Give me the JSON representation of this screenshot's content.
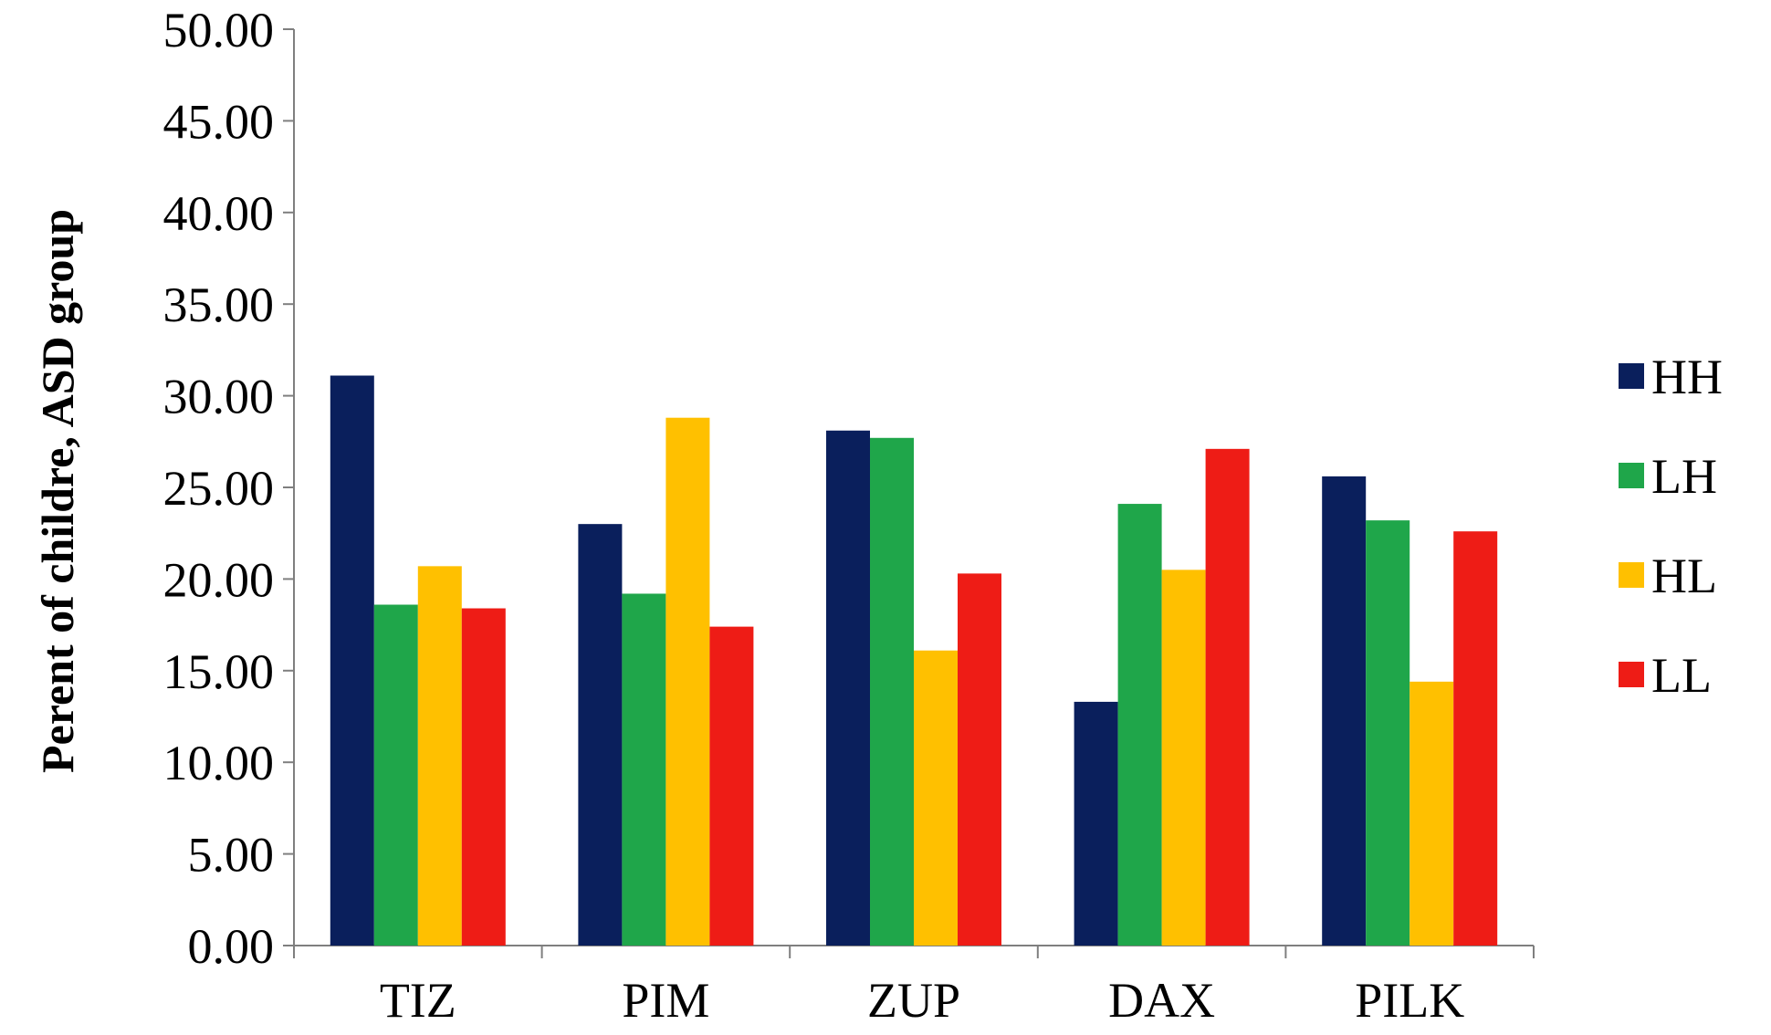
{
  "chart_data": {
    "type": "bar",
    "title": "",
    "xlabel": "",
    "ylabel": "Perent of childre, ASD group",
    "ylim": [
      0,
      50
    ],
    "yticks": [
      "0.00",
      "5.00",
      "10.00",
      "15.00",
      "20.00",
      "25.00",
      "30.00",
      "35.00",
      "40.00",
      "45.00",
      "50.00"
    ],
    "categories": [
      "TIZ",
      "PIM",
      "ZUP",
      "DAX",
      "PILK"
    ],
    "series": [
      {
        "name": "HH",
        "color": "#0a1f5c",
        "values": [
          31.1,
          23.0,
          28.1,
          13.3,
          25.6
        ]
      },
      {
        "name": "LH",
        "color": "#1fa64a",
        "values": [
          18.6,
          19.2,
          27.7,
          24.1,
          23.2
        ]
      },
      {
        "name": "HL",
        "color": "#ffc000",
        "values": [
          20.7,
          28.8,
          16.1,
          20.5,
          14.4
        ]
      },
      {
        "name": "LL",
        "color": "#ee1c16",
        "values": [
          18.4,
          17.4,
          20.3,
          27.1,
          22.6
        ]
      }
    ],
    "grid": false,
    "legend": "right"
  }
}
